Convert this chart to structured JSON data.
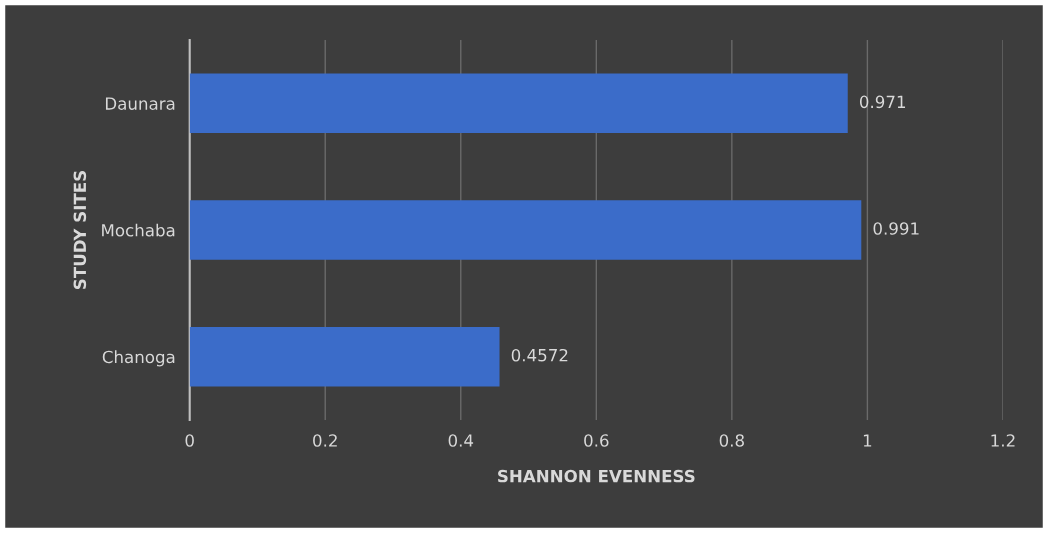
{
  "chart_data": {
    "type": "bar",
    "orientation": "horizontal",
    "xlabel": "SHANNON EVENNESS",
    "ylabel": "STUDY SITES",
    "categories": [
      "Daunara",
      "Mochaba",
      "Chanoga"
    ],
    "values": [
      0.971,
      0.991,
      0.4572
    ],
    "color": "#3b6cc9",
    "xlim": [
      0,
      1.2
    ],
    "xticks": [
      0,
      0.2,
      0.4,
      0.6,
      0.8,
      1,
      1.2
    ],
    "grid": "x",
    "data_labels": true
  }
}
